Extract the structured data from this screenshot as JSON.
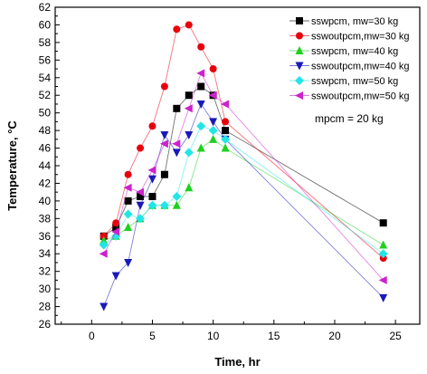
{
  "chart_data": {
    "type": "line",
    "xlabel": "Time, hr",
    "ylabel": "Temperature, °C",
    "xlim": [
      -3,
      27
    ],
    "ylim": [
      26,
      62
    ],
    "xticks": [
      0,
      5,
      10,
      15,
      20,
      25
    ],
    "yticks": [
      26,
      28,
      30,
      32,
      34,
      36,
      38,
      40,
      42,
      44,
      46,
      48,
      50,
      52,
      54,
      56,
      58,
      60,
      62
    ],
    "grid": false,
    "legend_position": "top-right",
    "annotation": "mpcm = 20 kg",
    "series": [
      {
        "name": "sswpcm, mw=30 kg",
        "color": "#000000",
        "marker": "square",
        "x": [
          1,
          2,
          3,
          4,
          5,
          6,
          7,
          8,
          9,
          10,
          11,
          24
        ],
        "y": [
          36,
          37,
          40,
          40.5,
          40.5,
          43,
          50.5,
          52,
          53,
          52,
          48,
          37.5
        ]
      },
      {
        "name": "sswoutpcm,mw=30 kg",
        "color": "#e8000b",
        "marker": "circle",
        "x": [
          1,
          2,
          3,
          4,
          5,
          6,
          7,
          8,
          9,
          10,
          11,
          24
        ],
        "y": [
          36,
          37.5,
          43,
          46,
          48.5,
          53,
          59.5,
          60,
          57.5,
          55,
          49,
          33.5
        ]
      },
      {
        "name": "sswpcm, mw=40 kg",
        "color": "#1fd01f",
        "marker": "triangle-up",
        "x": [
          1,
          2,
          3,
          4,
          5,
          6,
          7,
          8,
          9,
          10,
          11,
          24
        ],
        "y": [
          35.5,
          36,
          37,
          38,
          39.5,
          39.5,
          39.5,
          41.5,
          46,
          47,
          46,
          35
        ]
      },
      {
        "name": "sswoutpcm,mw=40 kg",
        "color": "#1a1ab8",
        "marker": "triangle-down",
        "x": [
          1,
          2,
          3,
          4,
          5,
          6,
          7,
          8,
          9,
          10,
          11,
          24
        ],
        "y": [
          28,
          31.5,
          33,
          39.5,
          42.5,
          47.5,
          45.5,
          47.5,
          51,
          49,
          47,
          29
        ]
      },
      {
        "name": "sswpcm, mw=50 kg",
        "color": "#22e6e6",
        "marker": "diamond",
        "x": [
          1,
          2,
          3,
          4,
          5,
          6,
          7,
          8,
          9,
          10,
          11,
          24
        ],
        "y": [
          35,
          36,
          38.5,
          38,
          39.5,
          39.5,
          40.5,
          45.5,
          48.5,
          48,
          47,
          34
        ]
      },
      {
        "name": "sswoutpcm,mw=50 kg",
        "color": "#cc22cc",
        "marker": "triangle-left",
        "x": [
          1,
          2,
          3,
          4,
          5,
          6,
          7,
          8,
          9,
          10,
          11,
          24
        ],
        "y": [
          34,
          36.5,
          41.5,
          41,
          43.5,
          46.5,
          46.5,
          50.5,
          54.5,
          52,
          51,
          31
        ]
      }
    ]
  }
}
